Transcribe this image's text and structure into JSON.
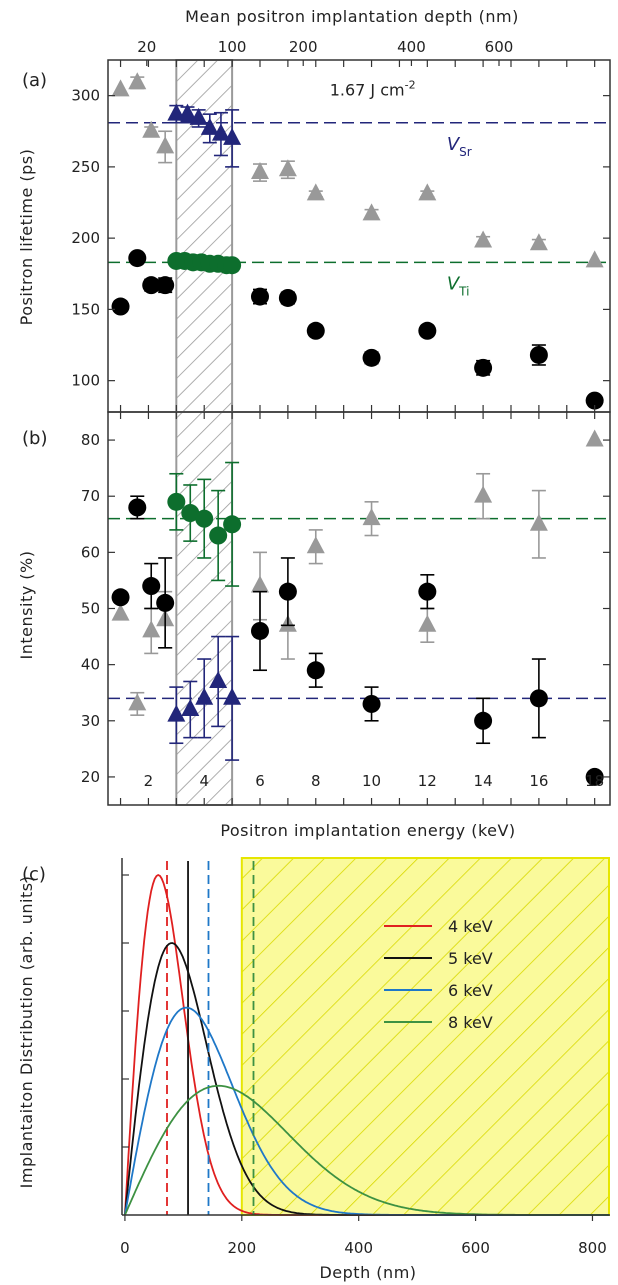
{
  "figure": {
    "panel_labels": [
      "(a)",
      "(b)",
      "(c)"
    ],
    "top_axis_label": "Mean positron implantation depth (nm)",
    "top_ticks": [
      {
        "v": 20,
        "E": 1.94
      },
      {
        "v": 100,
        "E": 5.0
      },
      {
        "v": 200,
        "E": 7.55
      },
      {
        "v": 400,
        "E": 11.43
      },
      {
        "v": 600,
        "E": 14.57
      }
    ],
    "energy_axis_label": "Positron implantation energy (keV)",
    "energy_ticks": [
      2,
      4,
      6,
      8,
      10,
      12,
      14,
      16,
      18
    ],
    "hatched_band_keV": [
      3.0,
      5.0
    ],
    "colors": {
      "black": "#000000",
      "grey": "#999999",
      "green": "#0d6e2d",
      "navy": "#22267a",
      "axis": "#333333",
      "hatch": "#9a9a9a",
      "yellow": "#fafa9b",
      "yellow_border": "#e6e600"
    }
  },
  "chart_data": [
    {
      "type": "scatter",
      "panel": "(a)",
      "ylabel": "Positron lifetime (ps)",
      "ylim": [
        78,
        325
      ],
      "xlim": [
        0.55,
        18.55
      ],
      "yticks": [
        100,
        150,
        200,
        250,
        300
      ],
      "annotation": {
        "text": "1.67 J cm",
        "sup": "-2",
        "x": 8.5,
        "y": 300
      },
      "reference_lines": [
        {
          "name": "Sr",
          "y": 281,
          "color": "navy",
          "label": "V",
          "sub": "Sr",
          "lx": 12.7,
          "ly": 262
        },
        {
          "name": "Ti",
          "y": 183,
          "color": "green",
          "label": "V",
          "sub": "Ti",
          "lx": 12.7,
          "ly": 164
        }
      ],
      "series": [
        {
          "marker": "triangle",
          "color": "grey",
          "points": [
            {
              "x": 1.0,
              "y": 304,
              "e": 0
            },
            {
              "x": 1.6,
              "y": 309,
              "e": 4
            },
            {
              "x": 2.1,
              "y": 275,
              "e": 3
            },
            {
              "x": 2.6,
              "y": 264,
              "e": 11
            },
            {
              "x": 6.0,
              "y": 246,
              "e": 6
            },
            {
              "x": 7.0,
              "y": 248,
              "e": 6
            },
            {
              "x": 8.0,
              "y": 231,
              "e": 2
            },
            {
              "x": 10.0,
              "y": 217,
              "e": 3
            },
            {
              "x": 12.0,
              "y": 231,
              "e": 2
            },
            {
              "x": 14.0,
              "y": 198,
              "e": 3
            },
            {
              "x": 16.0,
              "y": 196,
              "e": 3
            },
            {
              "x": 18.0,
              "y": 184,
              "e": 0
            }
          ]
        },
        {
          "marker": "circle",
          "color": "black",
          "points": [
            {
              "x": 1.0,
              "y": 152,
              "e": 0
            },
            {
              "x": 1.6,
              "y": 186,
              "e": 0
            },
            {
              "x": 2.1,
              "y": 167,
              "e": 4
            },
            {
              "x": 2.6,
              "y": 167,
              "e": 5
            },
            {
              "x": 6.0,
              "y": 159,
              "e": 5
            },
            {
              "x": 7.0,
              "y": 158,
              "e": 4
            },
            {
              "x": 8.0,
              "y": 135,
              "e": 3
            },
            {
              "x": 10.0,
              "y": 116,
              "e": 4
            },
            {
              "x": 12.0,
              "y": 135,
              "e": 3
            },
            {
              "x": 14.0,
              "y": 109,
              "e": 5
            },
            {
              "x": 16.0,
              "y": 118,
              "e": 7
            },
            {
              "x": 18.0,
              "y": 86,
              "e": 3
            }
          ]
        },
        {
          "marker": "circle",
          "color": "green",
          "points": [
            {
              "x": 3.0,
              "y": 184,
              "e": 2
            },
            {
              "x": 3.3,
              "y": 184,
              "e": 2
            },
            {
              "x": 3.6,
              "y": 183,
              "e": 2
            },
            {
              "x": 3.9,
              "y": 183,
              "e": 2
            },
            {
              "x": 4.2,
              "y": 182,
              "e": 2
            },
            {
              "x": 4.5,
              "y": 182,
              "e": 2
            },
            {
              "x": 4.8,
              "y": 181,
              "e": 2
            },
            {
              "x": 5.0,
              "y": 181,
              "e": 2
            }
          ]
        },
        {
          "marker": "triangle",
          "color": "navy",
          "points": [
            {
              "x": 3.0,
              "y": 287,
              "e": 6
            },
            {
              "x": 3.4,
              "y": 287,
              "e": 5
            },
            {
              "x": 3.8,
              "y": 284,
              "e": 6
            },
            {
              "x": 4.2,
              "y": 277,
              "e": 10
            },
            {
              "x": 4.6,
              "y": 273,
              "e": 15
            },
            {
              "x": 5.0,
              "y": 270,
              "e": 20
            }
          ]
        }
      ]
    },
    {
      "type": "scatter",
      "panel": "(b)",
      "ylabel": "Intensity (%)",
      "ylim": [
        15,
        85
      ],
      "xlim": [
        0.55,
        18.55
      ],
      "yticks": [
        20,
        30,
        40,
        50,
        60,
        70,
        80
      ],
      "reference_lines": [
        {
          "name": "green",
          "y": 66,
          "color": "green"
        },
        {
          "name": "navy",
          "y": 34,
          "color": "navy"
        }
      ],
      "series": [
        {
          "marker": "triangle",
          "color": "grey",
          "points": [
            {
              "x": 1.0,
              "y": 49,
              "e": 0
            },
            {
              "x": 1.6,
              "y": 33,
              "e": 2
            },
            {
              "x": 2.1,
              "y": 46,
              "e": 4
            },
            {
              "x": 2.6,
              "y": 48,
              "e": 5
            },
            {
              "x": 6.0,
              "y": 54,
              "e": 6
            },
            {
              "x": 7.0,
              "y": 47,
              "e": 6
            },
            {
              "x": 8.0,
              "y": 61,
              "e": 3
            },
            {
              "x": 10.0,
              "y": 66,
              "e": 3
            },
            {
              "x": 12.0,
              "y": 47,
              "e": 3
            },
            {
              "x": 14.0,
              "y": 70,
              "e": 4
            },
            {
              "x": 16.0,
              "y": 65,
              "e": 6
            },
            {
              "x": 18.0,
              "y": 80,
              "e": 0
            }
          ]
        },
        {
          "marker": "circle",
          "color": "black",
          "points": [
            {
              "x": 1.0,
              "y": 52,
              "e": 0
            },
            {
              "x": 1.6,
              "y": 68,
              "e": 2
            },
            {
              "x": 2.1,
              "y": 54,
              "e": 4
            },
            {
              "x": 2.6,
              "y": 51,
              "e": 8
            },
            {
              "x": 6.0,
              "y": 46,
              "e": 7
            },
            {
              "x": 7.0,
              "y": 53,
              "e": 6
            },
            {
              "x": 8.0,
              "y": 39,
              "e": 3
            },
            {
              "x": 10.0,
              "y": 33,
              "e": 3
            },
            {
              "x": 12.0,
              "y": 53,
              "e": 3
            },
            {
              "x": 14.0,
              "y": 30,
              "e": 4
            },
            {
              "x": 16.0,
              "y": 34,
              "e": 7
            },
            {
              "x": 18.0,
              "y": 20,
              "e": 0
            }
          ]
        },
        {
          "marker": "circle",
          "color": "green",
          "points": [
            {
              "x": 3.0,
              "y": 69,
              "e": 5
            },
            {
              "x": 3.5,
              "y": 67,
              "e": 5
            },
            {
              "x": 4.0,
              "y": 66,
              "e": 7
            },
            {
              "x": 4.5,
              "y": 63,
              "e": 8
            },
            {
              "x": 5.0,
              "y": 65,
              "e": 11
            }
          ]
        },
        {
          "marker": "triangle",
          "color": "navy",
          "points": [
            {
              "x": 3.0,
              "y": 31,
              "e": 5
            },
            {
              "x": 3.5,
              "y": 32,
              "e": 5
            },
            {
              "x": 4.0,
              "y": 34,
              "e": 7
            },
            {
              "x": 4.5,
              "y": 37,
              "e": 8
            },
            {
              "x": 5.0,
              "y": 34,
              "e": 11
            }
          ]
        }
      ]
    },
    {
      "type": "line",
      "panel": "(c)",
      "xlabel": "Depth (nm)",
      "ylabel": "Implantaiton Distribution (arb. units)",
      "xlim": [
        -5,
        830
      ],
      "ylim": [
        0,
        1.05
      ],
      "xticks": [
        0,
        200,
        400,
        600,
        800
      ],
      "yticks": [
        0.2,
        0.4,
        0.6,
        0.8,
        1.0
      ],
      "shaded_region": {
        "x": [
          200,
          830
        ],
        "color": "yellow"
      },
      "series": [
        {
          "name": "4 keV",
          "peak_depth": 57,
          "peak": 1.0,
          "mean_depth": 72,
          "color": "#e02020",
          "mean_line_style": "dashed"
        },
        {
          "name": "5 keV",
          "peak_depth": 80,
          "peak": 0.8,
          "mean_depth": 108,
          "color": "#111111",
          "mean_line_style": "solid"
        },
        {
          "name": "6 keV",
          "peak_depth": 105,
          "peak": 0.61,
          "mean_depth": 143,
          "color": "#1f78c8",
          "mean_line_style": "dashed"
        },
        {
          "name": "8 keV",
          "peak_depth": 160,
          "peak": 0.38,
          "mean_depth": 220,
          "color": "#3d9142",
          "mean_line_style": "dashed"
        }
      ]
    }
  ]
}
